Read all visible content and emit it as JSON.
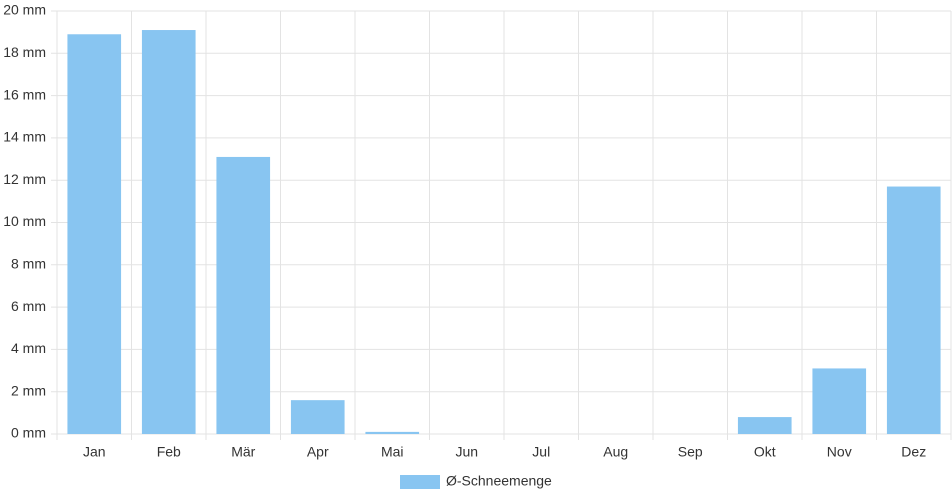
{
  "chart_data": {
    "type": "bar",
    "categories": [
      "Jan",
      "Feb",
      "Mär",
      "Apr",
      "Mai",
      "Jun",
      "Jul",
      "Aug",
      "Sep",
      "Okt",
      "Nov",
      "Dez"
    ],
    "series": [
      {
        "name": "Ø-Schneemenge",
        "color": "#88c5f1",
        "values": [
          18.9,
          19.1,
          13.1,
          1.6,
          0.1,
          0,
          0,
          0,
          0,
          0.8,
          3.1,
          11.7
        ]
      }
    ],
    "ylim": [
      0,
      20
    ],
    "yticks": [
      {
        "value": 0,
        "label": "0 mm"
      },
      {
        "value": 2,
        "label": "2 mm"
      },
      {
        "value": 4,
        "label": "4 mm"
      },
      {
        "value": 6,
        "label": "6 mm"
      },
      {
        "value": 8,
        "label": "8 mm"
      },
      {
        "value": 10,
        "label": "10 mm"
      },
      {
        "value": 12,
        "label": "12 mm"
      },
      {
        "value": 14,
        "label": "14 mm"
      },
      {
        "value": 16,
        "label": "16 mm"
      },
      {
        "value": 18,
        "label": "18 mm"
      },
      {
        "value": 20,
        "label": "20 mm"
      }
    ],
    "grid": true,
    "legend": "bottom"
  }
}
